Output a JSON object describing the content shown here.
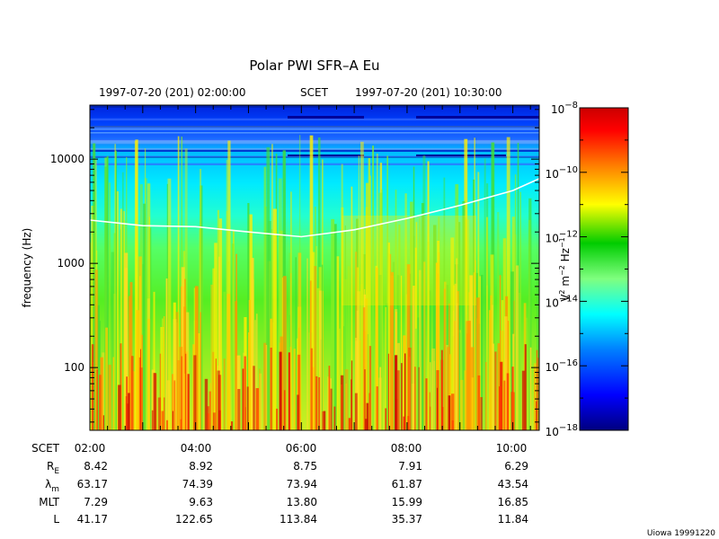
{
  "chart_data": {
    "type": "heatmap",
    "title": "Polar PWI SFR–A Eu",
    "header": {
      "start": "1997-07-20 (201) 02:00:00",
      "mid": "SCET",
      "end": "1997-07-20 (201) 10:30:00"
    },
    "ylabel": "frequency (Hz)",
    "y_scale": "log",
    "ylim": [
      25,
      33000
    ],
    "xlim": [
      "02:00",
      "10:30"
    ],
    "y_ticks": [
      {
        "value": 100,
        "label": "100"
      },
      {
        "value": 1000,
        "label": "1000"
      },
      {
        "value": 10000,
        "label": "10000"
      }
    ],
    "x_ticks": [
      "02:00",
      "04:00",
      "06:00",
      "08:00",
      "10:00"
    ],
    "colorbar": {
      "label_base": "V",
      "label_exp1": "2",
      "label_mid": " m",
      "label_exp2": "−2",
      "label_unit": " Hz",
      "label_exp3": "−1",
      "scale": "log",
      "range": [
        -18,
        -8
      ],
      "ticks": [
        {
          "base": "10",
          "exp": "−8"
        },
        {
          "base": "10",
          "exp": "−10"
        },
        {
          "base": "10",
          "exp": "−12"
        },
        {
          "base": "10",
          "exp": "−14"
        },
        {
          "base": "10",
          "exp": "−16"
        },
        {
          "base": "10",
          "exp": "−18"
        }
      ],
      "colors": [
        "#00007f",
        "#0000ff",
        "#007fff",
        "#00ffff",
        "#7fff7f",
        "#00cc00",
        "#ffff00",
        "#ff7f00",
        "#ff0000",
        "#cc0000"
      ]
    },
    "trace": {
      "name": "",
      "color": "#ffffff",
      "x": [
        "02:00",
        "03:00",
        "04:00",
        "05:00",
        "06:00",
        "07:00",
        "08:00",
        "09:00",
        "10:00",
        "10:30"
      ],
      "y": [
        2600,
        2300,
        2250,
        2000,
        1800,
        2100,
        2700,
        3600,
        5000,
        6500
      ]
    },
    "ephemeris": {
      "labels": [
        "SCET",
        "R_E",
        "λ_m",
        "MLT",
        "L"
      ],
      "label_text": [
        {
          "main": "SCET",
          "sub": ""
        },
        {
          "main": "R",
          "sub": "E"
        },
        {
          "main": "λ",
          "sub": "m"
        },
        {
          "main": "MLT",
          "sub": ""
        },
        {
          "main": "L",
          "sub": ""
        }
      ],
      "rows": [
        [
          "02:00",
          "04:00",
          "06:00",
          "08:00",
          "10:00"
        ],
        [
          "8.42",
          "8.92",
          "8.75",
          "7.91",
          "6.29"
        ],
        [
          "63.17",
          "74.39",
          "73.94",
          "61.87",
          "43.54"
        ],
        [
          "7.29",
          "9.63",
          "13.80",
          "15.99",
          "16.85"
        ],
        [
          "41.17",
          "122.65",
          "113.84",
          "35.37",
          "11.84"
        ]
      ]
    },
    "footer": "Uiowa 19991220"
  }
}
